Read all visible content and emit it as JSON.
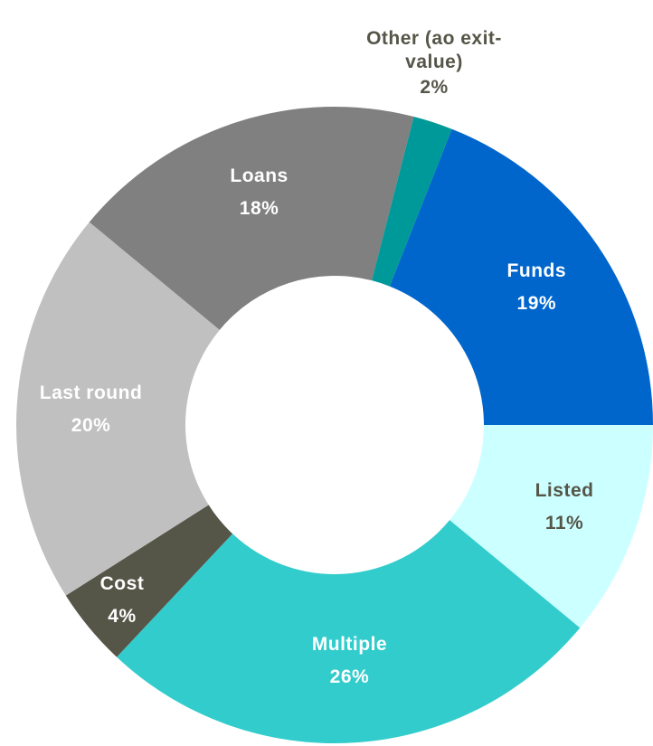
{
  "chart_data": {
    "type": "donut",
    "categories": [
      "Funds",
      "Listed",
      "Multiple",
      "Cost",
      "Last round",
      "Loans",
      "Other (ao exit-value)"
    ],
    "values": [
      19,
      11,
      26,
      4,
      20,
      18,
      2
    ],
    "value_labels": [
      "19%",
      "11%",
      "26%",
      "4%",
      "20%",
      "18%",
      "2%"
    ],
    "colors": [
      "#0066cc",
      "#ccffff",
      "#33cccc",
      "#555548",
      "#c0c0c0",
      "#808080",
      "#009999"
    ]
  }
}
